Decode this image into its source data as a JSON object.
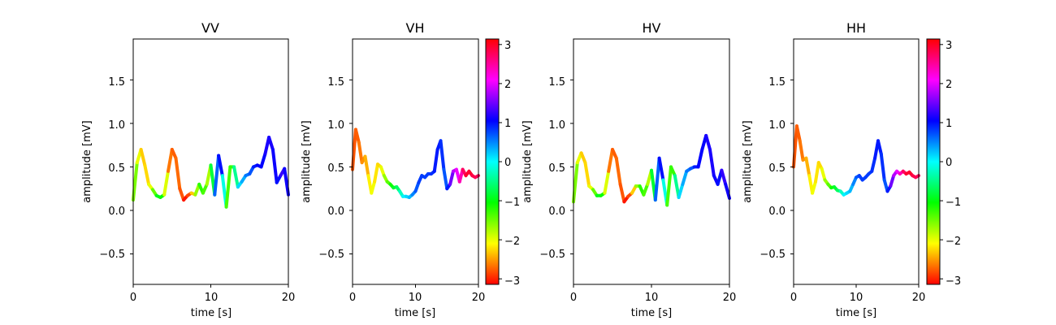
{
  "chart_data": [
    {
      "type": "line",
      "title": "VV",
      "xlabel": "time [s]",
      "ylabel": "amplitude [mV]",
      "xlim": [
        0,
        20
      ],
      "ylim": [
        -0.85,
        1.97
      ],
      "xticks": [
        "0",
        "10",
        "20"
      ],
      "yticks": [
        "−0.5",
        "0.0",
        "0.5",
        "1.0",
        "1.5"
      ],
      "colorbar": false,
      "series": [
        {
          "x": [
            0,
            0.5,
            1,
            1.5,
            2,
            2.5,
            3,
            3.5,
            4,
            4.5,
            5,
            5.5,
            6,
            6.5,
            7,
            7.5,
            8,
            8.5,
            9,
            9.5,
            10,
            10.5,
            11,
            11.5,
            12,
            12.5,
            13,
            13.5,
            14,
            14.5,
            15,
            15.5,
            16,
            16.5,
            17,
            17.5,
            18,
            18.5,
            19,
            19.5,
            20
          ],
          "y": [
            0.12,
            0.55,
            0.7,
            0.52,
            0.3,
            0.24,
            0.17,
            0.15,
            0.18,
            0.45,
            0.7,
            0.6,
            0.25,
            0.12,
            0.17,
            0.2,
            0.18,
            0.3,
            0.2,
            0.3,
            0.52,
            0.18,
            0.63,
            0.4,
            0.04,
            0.5,
            0.5,
            0.27,
            0.33,
            0.4,
            0.42,
            0.5,
            0.52,
            0.5,
            0.65,
            0.84,
            0.7,
            0.32,
            0.4,
            0.48,
            0.18
          ],
          "phase": [
            -1.3,
            -1.8,
            -2.2,
            -2.4,
            -2.1,
            -1.9,
            -1.0,
            -0.9,
            -1.3,
            -2.6,
            -2.7,
            -2.8,
            -2.6,
            -3.0,
            -3.1,
            -2.6,
            -2.0,
            -1.3,
            -1.1,
            -1.6,
            -1.9,
            0.3,
            1.0,
            1.0,
            -1.2,
            -1.5,
            -1.0,
            0.1,
            0.2,
            0.5,
            0.6,
            0.8,
            1.1,
            1.0,
            1.1,
            1.2,
            1.1,
            1.1,
            0.9,
            1.6,
            0.6
          ]
        }
      ]
    },
    {
      "type": "line",
      "title": "VH",
      "xlabel": "time [s]",
      "ylabel": "amplitude [mV]",
      "xlim": [
        0,
        20
      ],
      "ylim": [
        -0.85,
        1.97
      ],
      "xticks": [
        "0",
        "10",
        "20"
      ],
      "yticks": [
        "−0.5",
        "0.0",
        "0.5",
        "1.0",
        "1.5"
      ],
      "colorbar": true,
      "series": [
        {
          "x": [
            0,
            0.5,
            1,
            1.5,
            2,
            2.5,
            3,
            3.5,
            4,
            4.5,
            5,
            5.5,
            6,
            6.5,
            7,
            7.5,
            8,
            8.5,
            9,
            9.5,
            10,
            10.5,
            11,
            11.5,
            12,
            12.5,
            13,
            13.5,
            14,
            14.5,
            15,
            15.5,
            16,
            16.5,
            17,
            17.5,
            18,
            18.5,
            19,
            19.5,
            20
          ],
          "y": [
            0.47,
            0.93,
            0.78,
            0.55,
            0.62,
            0.4,
            0.2,
            0.33,
            0.53,
            0.5,
            0.4,
            0.33,
            0.3,
            0.26,
            0.27,
            0.22,
            0.16,
            0.16,
            0.15,
            0.18,
            0.22,
            0.32,
            0.4,
            0.38,
            0.42,
            0.42,
            0.45,
            0.7,
            0.8,
            0.47,
            0.25,
            0.3,
            0.45,
            0.47,
            0.33,
            0.47,
            0.4,
            0.45,
            0.4,
            0.38,
            0.4
          ],
          "phase": [
            -2.8,
            -2.8,
            -2.7,
            -2.6,
            -2.5,
            -2.3,
            -2.0,
            -2.1,
            -2.3,
            -2.2,
            -1.8,
            -1.5,
            -1.3,
            -0.9,
            -0.8,
            -0.5,
            0.0,
            0.1,
            0.2,
            0.4,
            0.6,
            0.8,
            0.8,
            0.8,
            0.8,
            0.8,
            0.9,
            1.0,
            0.9,
            0.8,
            0.6,
            1.3,
            1.7,
            1.9,
            2.2,
            2.6,
            2.9,
            3.0,
            2.9,
            2.8,
            2.8
          ]
        }
      ]
    },
    {
      "type": "line",
      "title": "HV",
      "xlabel": "time [s]",
      "ylabel": "amplitude [mV]",
      "xlim": [
        0,
        20
      ],
      "ylim": [
        -0.85,
        1.97
      ],
      "xticks": [
        "0",
        "10",
        "20"
      ],
      "yticks": [
        "−0.5",
        "0.0",
        "0.5",
        "1.0",
        "1.5"
      ],
      "colorbar": false,
      "series": [
        {
          "x": [
            0,
            0.5,
            1,
            1.5,
            2,
            2.5,
            3,
            3.5,
            4,
            4.5,
            5,
            5.5,
            6,
            6.5,
            7,
            7.5,
            8,
            8.5,
            9,
            9.5,
            10,
            10.5,
            11,
            11.5,
            12,
            12.5,
            13,
            13.5,
            14,
            14.5,
            15,
            15.5,
            16,
            16.5,
            17,
            17.5,
            18,
            18.5,
            19,
            19.5,
            20
          ],
          "y": [
            0.1,
            0.55,
            0.66,
            0.55,
            0.28,
            0.24,
            0.17,
            0.17,
            0.2,
            0.45,
            0.7,
            0.6,
            0.3,
            0.1,
            0.16,
            0.2,
            0.28,
            0.28,
            0.18,
            0.3,
            0.46,
            0.12,
            0.6,
            0.35,
            0.06,
            0.5,
            0.4,
            0.15,
            0.3,
            0.45,
            0.48,
            0.5,
            0.5,
            0.7,
            0.86,
            0.7,
            0.4,
            0.3,
            0.46,
            0.3,
            0.14
          ],
          "phase": [
            -1.3,
            -1.8,
            -2.2,
            -2.4,
            -2.1,
            -1.9,
            -1.0,
            -0.9,
            -1.3,
            -2.6,
            -2.7,
            -2.8,
            -2.6,
            -3.0,
            -3.1,
            -2.6,
            -2.0,
            -1.3,
            -1.1,
            -1.6,
            -2.0,
            0.3,
            1.0,
            1.0,
            -1.2,
            -1.5,
            -1.0,
            0.1,
            0.2,
            0.5,
            0.6,
            0.8,
            1.1,
            1.0,
            1.1,
            1.2,
            1.1,
            1.1,
            0.9,
            1.6,
            0.6
          ]
        }
      ]
    },
    {
      "type": "line",
      "title": "HH",
      "xlabel": "time [s]",
      "ylabel": "amplitude [mV]",
      "xlim": [
        0,
        20
      ],
      "ylim": [
        -0.85,
        1.97
      ],
      "xticks": [
        "0",
        "10",
        "20"
      ],
      "yticks": [
        "−0.5",
        "0.0",
        "0.5",
        "1.0",
        "1.5"
      ],
      "colorbar": true,
      "series": [
        {
          "x": [
            0,
            0.5,
            1,
            1.5,
            2,
            2.5,
            3,
            3.5,
            4,
            4.5,
            5,
            5.5,
            6,
            6.5,
            7,
            7.5,
            8,
            8.5,
            9,
            9.5,
            10,
            10.5,
            11,
            11.5,
            12,
            12.5,
            13,
            13.5,
            14,
            14.5,
            15,
            15.5,
            16,
            16.5,
            17,
            17.5,
            18,
            18.5,
            19,
            19.5,
            20
          ],
          "y": [
            0.5,
            0.97,
            0.8,
            0.58,
            0.6,
            0.4,
            0.2,
            0.33,
            0.55,
            0.48,
            0.35,
            0.3,
            0.26,
            0.27,
            0.23,
            0.22,
            0.18,
            0.2,
            0.22,
            0.3,
            0.38,
            0.4,
            0.35,
            0.38,
            0.42,
            0.45,
            0.6,
            0.8,
            0.65,
            0.35,
            0.22,
            0.28,
            0.4,
            0.45,
            0.42,
            0.45,
            0.42,
            0.44,
            0.4,
            0.38,
            0.4
          ],
          "phase": [
            -2.8,
            -2.8,
            -2.7,
            -2.6,
            -2.5,
            -2.3,
            -2.0,
            -2.1,
            -2.3,
            -2.2,
            -1.8,
            -1.5,
            -1.3,
            -0.9,
            -0.8,
            -0.5,
            0.0,
            0.1,
            0.2,
            0.4,
            0.6,
            0.8,
            0.8,
            0.8,
            0.8,
            0.8,
            0.9,
            1.0,
            0.9,
            0.8,
            0.6,
            1.3,
            1.7,
            1.9,
            2.2,
            2.6,
            2.9,
            3.0,
            2.9,
            2.8,
            2.8
          ]
        }
      ]
    }
  ],
  "colorbar": {
    "range": [
      -3.1416,
      3.1416
    ],
    "colormap": "hsv",
    "ticks": [
      "−3",
      "−2",
      "−1",
      "0",
      "1",
      "2",
      "3"
    ],
    "tick_values": [
      -3,
      -2,
      -1,
      0,
      1,
      2,
      3
    ]
  },
  "colors": {
    "axes": "#000000",
    "background": "#ffffff"
  }
}
